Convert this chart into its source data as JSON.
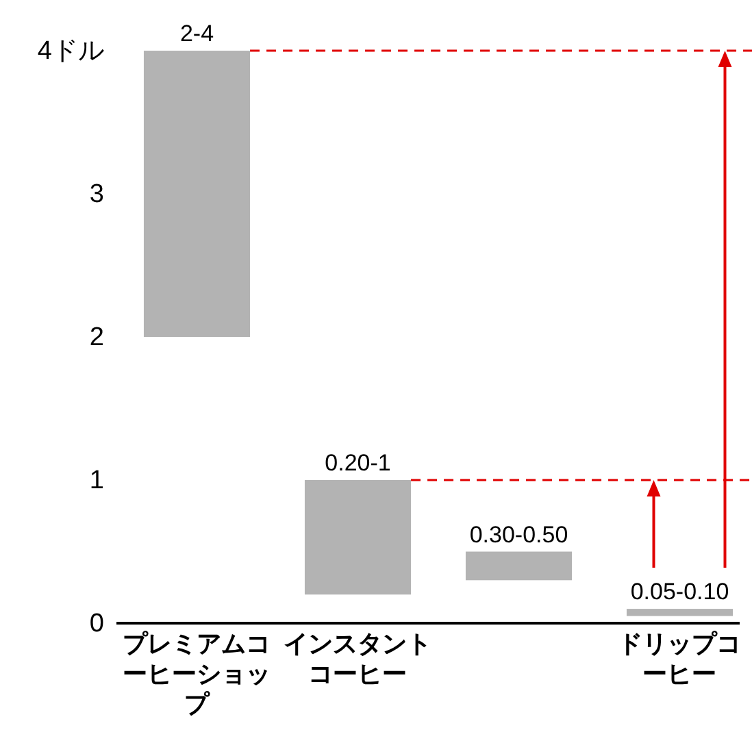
{
  "chart_data": {
    "type": "bar",
    "categories": [
      "プレミアムコーヒーショップ",
      "インスタントコーヒー",
      null,
      "ドリップコーヒー"
    ],
    "values": [
      2,
      0.8,
      0.2,
      0.05
    ],
    "base": [
      2,
      0.2,
      0.3,
      0.05
    ],
    "color": "#b3b3b3",
    "value_labels": [
      "2-4",
      "0.20-1",
      "0.30-0.50",
      "0.05-0.10"
    ],
    "ylim": [
      0,
      4
    ],
    "yticks": [
      0,
      1,
      2,
      3,
      {
        "value": 4,
        "label": "4ドル"
      }
    ],
    "ref_lines": [
      {
        "axis": "y",
        "value": 4,
        "color": "#e00000",
        "line_style": "dashed"
      },
      {
        "axis": "y",
        "value": 1,
        "color": "#e00000",
        "line_style": "dashed"
      }
    ]
  }
}
